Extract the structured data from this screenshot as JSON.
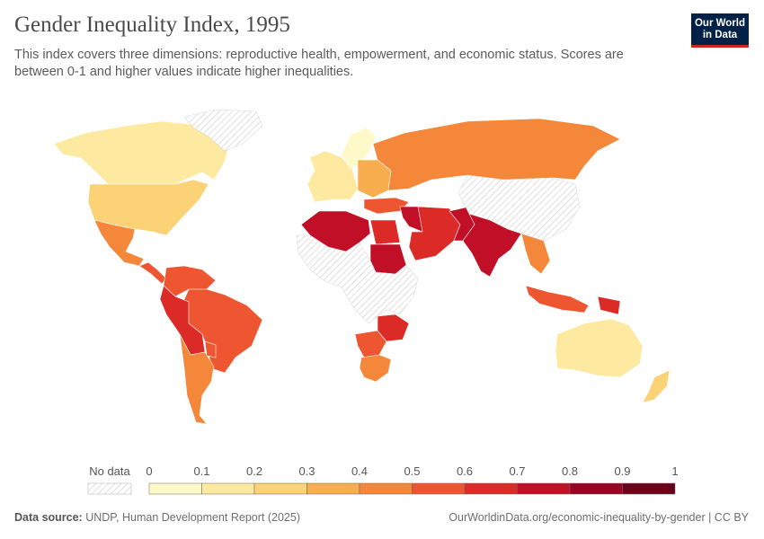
{
  "header": {
    "title": "Gender Inequality Index, 1995",
    "subtitle": "This index covers three dimensions: reproductive health, empowerment, and economic status. Scores are between 0-1 and higher values indicate higher inequalities."
  },
  "logo": {
    "line1": "Our World",
    "line2": "in Data",
    "bg": "#002147",
    "accent": "#ce261e"
  },
  "legend": {
    "no_data_label": "No data",
    "ticks": [
      "0",
      "0.1",
      "0.2",
      "0.3",
      "0.4",
      "0.5",
      "0.6",
      "0.7",
      "0.8",
      "0.9",
      "1"
    ],
    "colors": [
      "#fff9c9",
      "#fde9a0",
      "#fbd275",
      "#f8ae4f",
      "#f48739",
      "#ee5631",
      "#dc2a27",
      "#c10f27",
      "#9a0422",
      "#6b0018"
    ]
  },
  "map_colors": {
    "land_no_data": "#eeeeee",
    "stroke": "#ffffff"
  },
  "regions": [
    {
      "name": "Canada",
      "value": 0.13
    },
    {
      "name": "Greenland",
      "value": null
    },
    {
      "name": "United States",
      "value": 0.25
    },
    {
      "name": "Mexico",
      "value": 0.45
    },
    {
      "name": "Central America",
      "value": 0.52
    },
    {
      "name": "Colombia & Venezuela",
      "value": 0.58
    },
    {
      "name": "Brazil",
      "value": 0.56
    },
    {
      "name": "Peru & Bolivia",
      "value": 0.6
    },
    {
      "name": "Argentina & Chile",
      "value": 0.41
    },
    {
      "name": "Paraguay",
      "value": 0.55
    },
    {
      "name": "Western Europe",
      "value": 0.18
    },
    {
      "name": "Scandinavia",
      "value": 0.09
    },
    {
      "name": "Eastern Europe",
      "value": 0.3
    },
    {
      "name": "Russia",
      "value": 0.44
    },
    {
      "name": "Turkey",
      "value": 0.55
    },
    {
      "name": "Algeria & Libya",
      "value": 0.72
    },
    {
      "name": "Egypt",
      "value": 0.68
    },
    {
      "name": "Sudan",
      "value": 0.78
    },
    {
      "name": "Iraq & Syria",
      "value": 0.75
    },
    {
      "name": "Iran & Arabia",
      "value": 0.6
    },
    {
      "name": "Pakistan",
      "value": 0.74
    },
    {
      "name": "India",
      "value": 0.72
    },
    {
      "name": "Southeast Asia",
      "value": 0.45
    },
    {
      "name": "Indonesia",
      "value": 0.55
    },
    {
      "name": "Papua New Guinea",
      "value": 0.62
    },
    {
      "name": "Southern Africa",
      "value": 0.55
    },
    {
      "name": "South Africa",
      "value": 0.45
    },
    {
      "name": "Zimbabwe & Malawi",
      "value": 0.66
    },
    {
      "name": "Australia",
      "value": 0.16
    },
    {
      "name": "New Zealand",
      "value": 0.2
    },
    {
      "name": "China",
      "value": null
    },
    {
      "name": "Central Africa",
      "value": null
    }
  ],
  "footer": {
    "source_label": "Data source:",
    "source_text": "UNDP, Human Development Report (2025)",
    "url_text": "OurWorldinData.org/economic-inequality-by-gender | CC BY"
  }
}
